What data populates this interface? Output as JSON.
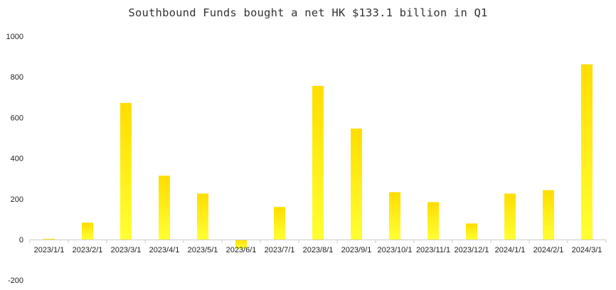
{
  "chart_data": {
    "type": "bar",
    "title": "Southbound Funds bought a net HK $133.1 billion in Q1",
    "xlabel": "",
    "ylabel": "",
    "ylim": [
      -200,
      1000
    ],
    "yticks": [
      -200,
      0,
      200,
      400,
      600,
      800,
      1000
    ],
    "grid": false,
    "legend": "none",
    "categories": [
      "2023/1/1",
      "2023/2/1",
      "2023/3/1",
      "2023/4/1",
      "2023/5/1",
      "2023/6/1",
      "2023/7/1",
      "2023/8/1",
      "2023/9/1",
      "2023/10/1",
      "2023/11/1",
      "2023/12/1",
      "2024/1/1",
      "2024/2/1",
      "2024/3/1"
    ],
    "values": [
      4,
      83,
      672,
      314,
      226,
      -45,
      160,
      756,
      546,
      233,
      184,
      79,
      226,
      243,
      862
    ],
    "colors": {
      "bar_top": "#FFDD00",
      "bar_bottom": "#FFFF33",
      "axis": "#CCCCCC"
    }
  }
}
